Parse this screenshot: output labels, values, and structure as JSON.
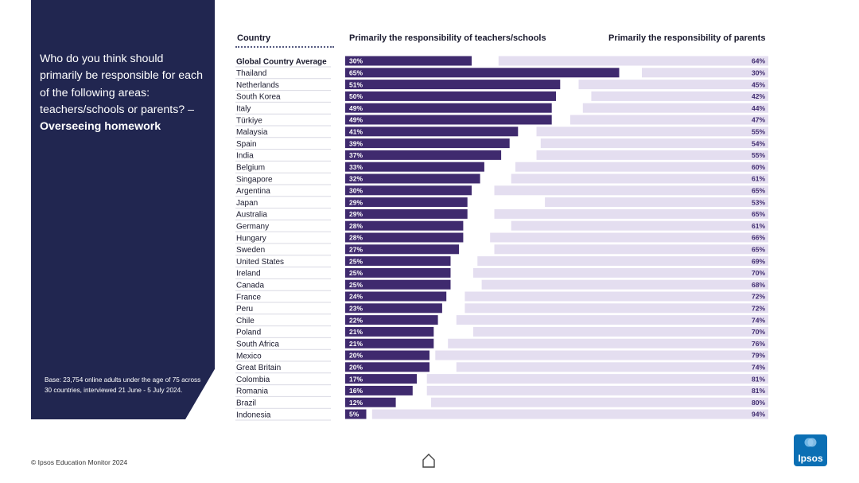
{
  "question": {
    "text": "Who do you think should primarily be responsible for each of the following areas: teachers/schools or parents?",
    "topic_prefix": "– ",
    "topic": "Overseeing homework"
  },
  "base_note": "Base: 23,754 online adults under the age of 75 across 30 countries, interviewed 21 June - 5 July 2024.",
  "headers": {
    "country": "Country",
    "teachers": "Primarily the responsibility of teachers/schools",
    "parents": "Primarily the responsibility of parents"
  },
  "footer": {
    "copyright": "© Ipsos Education Monitor 2024"
  },
  "logo": {
    "text": "Ipsos"
  },
  "colors": {
    "panel": "#212650",
    "teachers_bar": "#3f2a6e",
    "parents_bar": "#e4def0",
    "row_sep": "#d9d9e3"
  },
  "chart_data": {
    "type": "bar",
    "orientation": "horizontal",
    "categories": [
      "Global Country Average",
      "Thailand",
      "Netherlands",
      "South Korea",
      "Italy",
      "Türkiye",
      "Malaysia",
      "Spain",
      "India",
      "Belgium",
      "Singapore",
      "Argentina",
      "Japan",
      "Australia",
      "Germany",
      "Hungary",
      "Sweden",
      "United States",
      "Ireland",
      "Canada",
      "France",
      "Peru",
      "Chile",
      "Poland",
      "South Africa",
      "Mexico",
      "Great Britain",
      "Colombia",
      "Romania",
      "Brazil",
      "Indonesia"
    ],
    "series": [
      {
        "name": "Primarily the responsibility of teachers/schools",
        "values": [
          30,
          65,
          51,
          50,
          49,
          49,
          41,
          39,
          37,
          33,
          32,
          30,
          29,
          29,
          28,
          28,
          27,
          25,
          25,
          25,
          24,
          23,
          22,
          21,
          21,
          20,
          20,
          17,
          16,
          12,
          5
        ]
      },
      {
        "name": "Primarily the responsibility of parents",
        "values": [
          64,
          30,
          45,
          42,
          44,
          47,
          55,
          54,
          55,
          60,
          61,
          65,
          53,
          65,
          61,
          66,
          65,
          69,
          70,
          68,
          72,
          72,
          74,
          70,
          76,
          79,
          74,
          81,
          81,
          80,
          94
        ]
      }
    ],
    "unit": "%",
    "xlim": [
      0,
      100
    ]
  }
}
